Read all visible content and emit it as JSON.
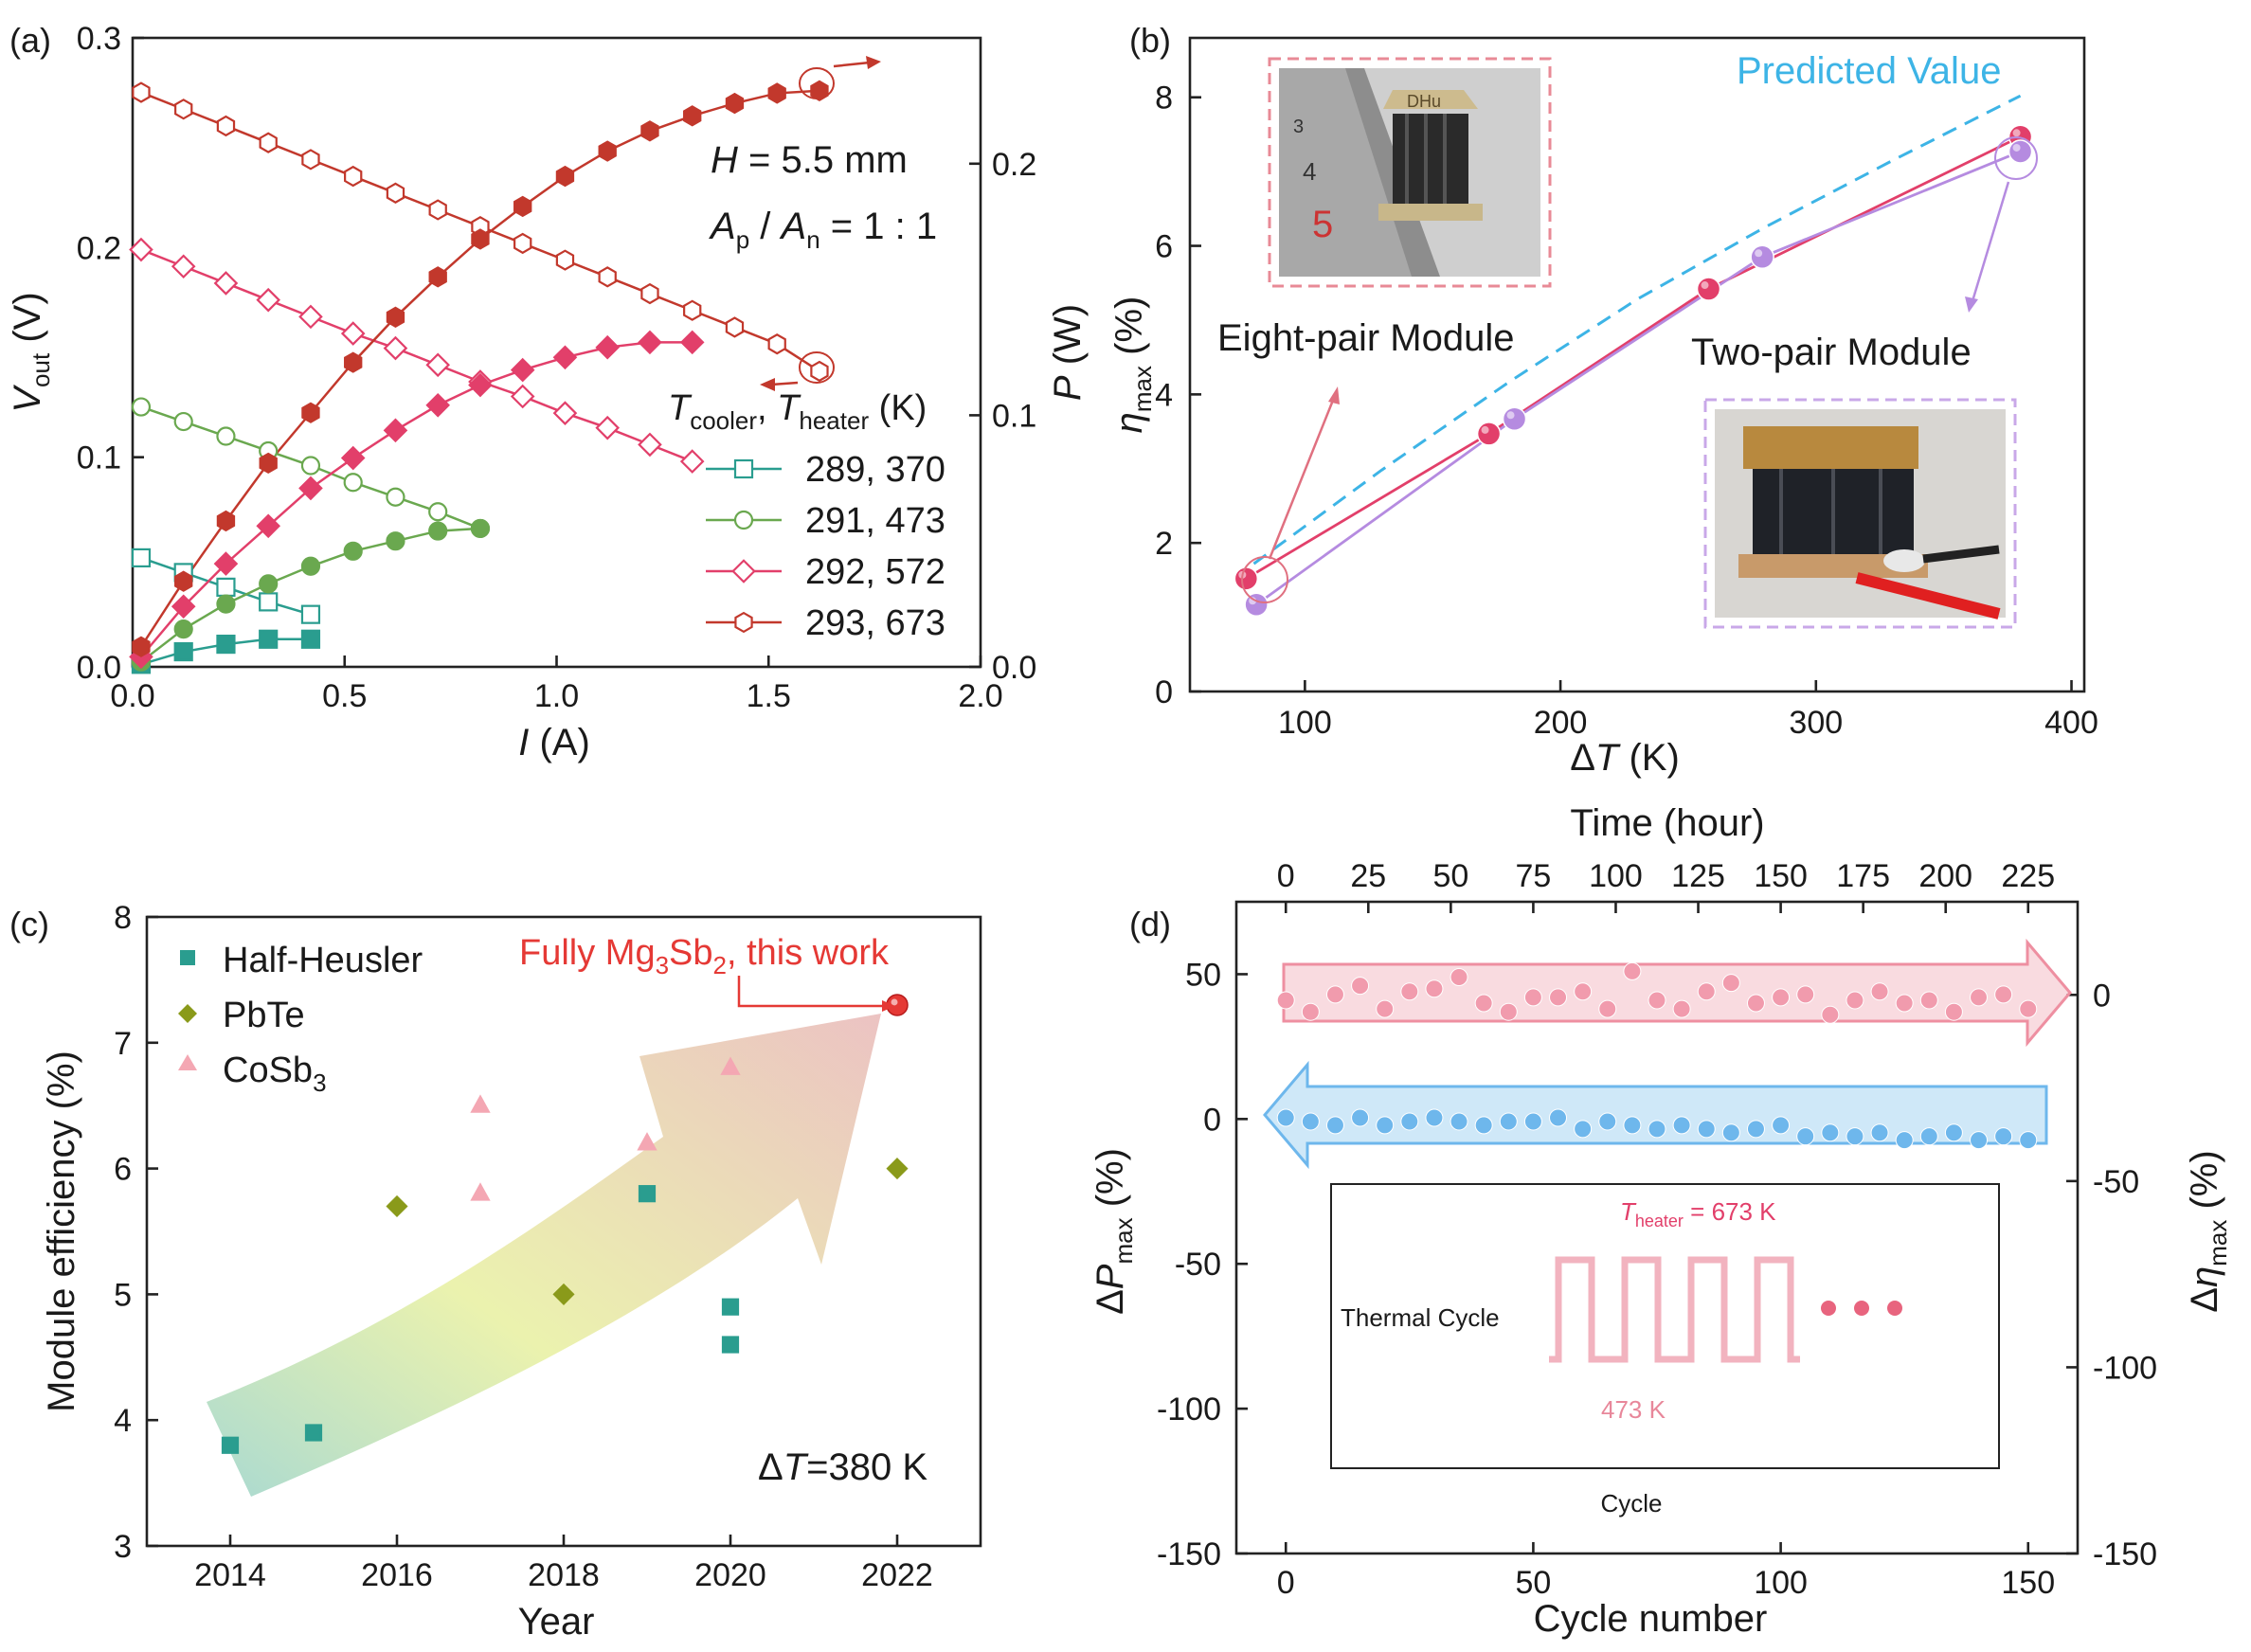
{
  "panel_labels": [
    "(a)",
    "(b)",
    "(c)",
    "(d)"
  ],
  "colors": {
    "teal": "#2a9d8f",
    "green": "#6aa84f",
    "pink": "#e23f6a",
    "red": "#c2382c",
    "purple": "#b58be0",
    "blue": "#3a96e0",
    "olive": "#8a9a1a",
    "light_pink": "#f4a7b3",
    "cycle_pink": "#f19bad",
    "cycle_blue": "#6eb7ec",
    "predicted": "#3db4e6",
    "accent_red": "#e53935"
  },
  "chart_data": [
    {
      "id": "a",
      "type": "line",
      "xlabel": "I (A)",
      "xlabel_italic": "I",
      "xlabel_unit": "(A)",
      "ylabel_left": "V_out (V)",
      "ylabel_right": "P (W)",
      "xlim": [
        0,
        2.0
      ],
      "ylim_left": [
        0,
        0.3
      ],
      "ylim_right": [
        0,
        0.25
      ],
      "xticks": [
        "0.0",
        "0.5",
        "1.0",
        "1.5",
        "2.0"
      ],
      "yticks_left": [
        "0.0",
        "0.1",
        "0.2",
        "0.3"
      ],
      "yticks_right": [
        "0.0",
        "0.1",
        "0.2"
      ],
      "annotation_h": "H = 5.5 mm",
      "annotation_ratio": "Ap / An = 1 : 1",
      "legend_title": "T_cooler, T_heater (K)",
      "series": [
        {
          "name": "289, 370",
          "color_key": "teal",
          "marker": "square",
          "voltage": {
            "x": [
              0.02,
              0.12,
              0.22,
              0.32,
              0.42
            ],
            "y": [
              0.052,
              0.045,
              0.038,
              0.031,
              0.025
            ]
          },
          "power": {
            "x": [
              0.02,
              0.12,
              0.22,
              0.32,
              0.42
            ],
            "y": [
              0.001,
              0.006,
              0.009,
              0.011,
              0.011
            ]
          }
        },
        {
          "name": "291, 473",
          "color_key": "green",
          "marker": "circle",
          "voltage": {
            "x": [
              0.02,
              0.12,
              0.22,
              0.32,
              0.42,
              0.52,
              0.62,
              0.72,
              0.82
            ],
            "y": [
              0.124,
              0.117,
              0.11,
              0.103,
              0.096,
              0.088,
              0.081,
              0.074,
              0.066
            ]
          },
          "power": {
            "x": [
              0.02,
              0.12,
              0.22,
              0.32,
              0.42,
              0.52,
              0.62,
              0.72,
              0.82
            ],
            "y": [
              0.002,
              0.015,
              0.025,
              0.033,
              0.04,
              0.046,
              0.05,
              0.054,
              0.055
            ]
          }
        },
        {
          "name": "292, 572",
          "color_key": "pink",
          "marker": "diamond",
          "voltage": {
            "x": [
              0.02,
              0.12,
              0.22,
              0.32,
              0.42,
              0.52,
              0.62,
              0.72,
              0.82,
              0.92,
              1.02,
              1.12,
              1.22,
              1.32
            ],
            "y": [
              0.199,
              0.191,
              0.183,
              0.175,
              0.167,
              0.159,
              0.152,
              0.144,
              0.136,
              0.129,
              0.121,
              0.114,
              0.106,
              0.098
            ]
          },
          "power": {
            "x": [
              0.02,
              0.12,
              0.22,
              0.32,
              0.42,
              0.52,
              0.62,
              0.72,
              0.82,
              0.92,
              1.02,
              1.12,
              1.22,
              1.32
            ],
            "y": [
              0.004,
              0.024,
              0.041,
              0.056,
              0.071,
              0.083,
              0.094,
              0.104,
              0.112,
              0.118,
              0.123,
              0.127,
              0.129,
              0.129
            ]
          }
        },
        {
          "name": "293, 673",
          "color_key": "red",
          "marker": "hexagon",
          "voltage": {
            "x": [
              0.02,
              0.12,
              0.22,
              0.32,
              0.42,
              0.52,
              0.62,
              0.72,
              0.82,
              0.92,
              1.02,
              1.12,
              1.22,
              1.32,
              1.42,
              1.52,
              1.62
            ],
            "y": [
              0.274,
              0.266,
              0.258,
              0.25,
              0.242,
              0.234,
              0.226,
              0.218,
              0.21,
              0.202,
              0.194,
              0.186,
              0.178,
              0.17,
              0.162,
              0.154,
              0.141
            ]
          },
          "power": {
            "x": [
              0.02,
              0.12,
              0.22,
              0.32,
              0.42,
              0.52,
              0.62,
              0.72,
              0.82,
              0.92,
              1.02,
              1.12,
              1.22,
              1.32,
              1.42,
              1.52,
              1.62
            ],
            "y": [
              0.008,
              0.034,
              0.058,
              0.081,
              0.101,
              0.121,
              0.139,
              0.155,
              0.17,
              0.183,
              0.195,
              0.205,
              0.213,
              0.219,
              0.224,
              0.228,
              0.229
            ]
          }
        }
      ]
    },
    {
      "id": "b",
      "type": "line",
      "xlabel": "ΔT (K)",
      "ylabel": "η_max (%)",
      "xlim": [
        55,
        405
      ],
      "ylim": [
        0,
        8.8
      ],
      "xticks": [
        100,
        200,
        300,
        400
      ],
      "yticks": [
        0,
        2,
        4,
        6,
        8
      ],
      "predicted_label": "Predicted Value",
      "predicted": {
        "x": [
          80,
          130,
          180,
          230,
          280,
          330,
          380
        ],
        "y": [
          1.72,
          2.98,
          4.17,
          5.28,
          6.25,
          7.15,
          8.02
        ]
      },
      "series": [
        {
          "name": "Eight-pair Module",
          "color_key": "pink",
          "x": [
            77,
            172,
            258,
            380
          ],
          "y": [
            1.52,
            3.47,
            5.42,
            7.47
          ]
        },
        {
          "name": "Two-pair Module",
          "color_key": "purple",
          "x": [
            81,
            182,
            279,
            380
          ],
          "y": [
            1.17,
            3.67,
            5.85,
            7.27
          ]
        }
      ]
    },
    {
      "id": "c",
      "type": "scatter",
      "xlabel": "Year",
      "ylabel": "Module efficiency (%)",
      "xlim": [
        2013,
        2023
      ],
      "ylim": [
        3,
        8
      ],
      "xticks": [
        2014,
        2016,
        2018,
        2020,
        2022
      ],
      "yticks": [
        3,
        4,
        5,
        6,
        7,
        8
      ],
      "annotation": "ΔT=380 K",
      "highlight_label": "Fully Mg3Sb2, this work",
      "highlight": {
        "x": 2022,
        "y": 7.3
      },
      "series": [
        {
          "name": "Half-Heusler",
          "color_key": "teal",
          "marker": "square",
          "x": [
            2014,
            2015,
            2019,
            2020,
            2020
          ],
          "y": [
            3.8,
            3.9,
            5.8,
            4.9,
            4.6
          ]
        },
        {
          "name": "PbTe",
          "color_key": "olive",
          "marker": "diamond",
          "x": [
            2016,
            2018,
            2022
          ],
          "y": [
            5.7,
            5.0,
            6.0
          ]
        },
        {
          "name": "CoSb3",
          "color_key": "light_pink",
          "marker": "triangle",
          "x": [
            2017,
            2017,
            2019,
            2020
          ],
          "y": [
            6.5,
            5.8,
            6.2,
            6.8
          ]
        }
      ]
    },
    {
      "id": "d",
      "type": "scatter",
      "xlabel": "Cycle number",
      "xlabel_top": "Time (hour)",
      "ylabel_left": "ΔP_max (%)",
      "ylabel_right": "Δη_max (%)",
      "xlim": [
        -10,
        160
      ],
      "ylim_left": [
        -150,
        75
      ],
      "ylim_right": [
        -150,
        25
      ],
      "xticks": [
        0,
        50,
        100,
        150
      ],
      "xticks_top": [
        0,
        25,
        50,
        75,
        100,
        125,
        150,
        175,
        200,
        225
      ],
      "yticks_left": [
        -150,
        -100,
        -50,
        0,
        50
      ],
      "yticks_right": [
        -150,
        -100,
        -50,
        0
      ],
      "inset_heater_label": "T_heater = 673 K",
      "inset_low_label": "473 K",
      "inset_left_label": "Thermal Cycle",
      "inset_bottom_label": "Cycle",
      "series": [
        {
          "name": "ΔP_max",
          "color_key": "cycle_pink",
          "axis": "left",
          "x": [
            0,
            5,
            10,
            15,
            20,
            25,
            30,
            35,
            40,
            45,
            50,
            55,
            60,
            65,
            70,
            75,
            80,
            85,
            90,
            95,
            100,
            105,
            110,
            115,
            120,
            125,
            130,
            135,
            140,
            145,
            150
          ],
          "y": [
            41,
            37,
            43,
            46,
            38,
            44,
            45,
            49,
            40,
            37,
            42,
            42,
            44,
            38,
            51,
            41,
            38,
            44,
            47,
            40,
            42,
            43,
            36,
            41,
            44,
            40,
            41,
            37,
            42,
            43,
            38
          ]
        },
        {
          "name": "Δη_max",
          "color_key": "cycle_blue",
          "axis": "right",
          "x": [
            0,
            5,
            10,
            15,
            20,
            25,
            30,
            35,
            40,
            45,
            50,
            55,
            60,
            65,
            70,
            75,
            80,
            85,
            90,
            95,
            100,
            105,
            110,
            115,
            120,
            125,
            130,
            135,
            140,
            145,
            150
          ],
          "y": [
            -33,
            -34,
            -35,
            -33,
            -35,
            -34,
            -33,
            -34,
            -35,
            -34,
            -34,
            -33,
            -36,
            -34,
            -35,
            -36,
            -35,
            -36,
            -37,
            -36,
            -35,
            -38,
            -37,
            -38,
            -37,
            -39,
            -38,
            -37,
            -39,
            -38,
            -39
          ]
        }
      ]
    }
  ]
}
